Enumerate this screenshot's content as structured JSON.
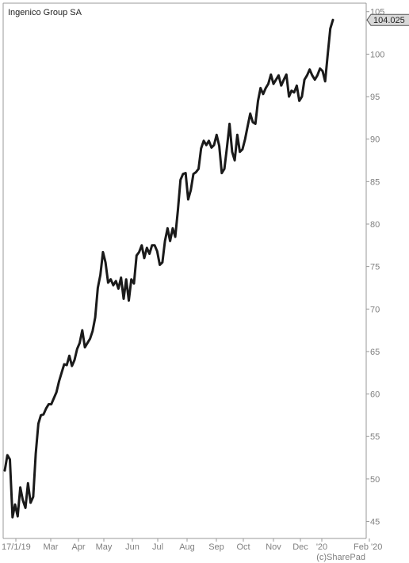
{
  "chart_data": {
    "type": "line",
    "title": "Ingenico Group SA",
    "credit": "(c)SharePad",
    "last_value_label": "104.025",
    "xlabel": "",
    "ylabel": "",
    "ylim": [
      43,
      106
    ],
    "grid": false,
    "x_tick_labels": [
      "17/1/19",
      "Mar",
      "Apr",
      "May",
      "Jun",
      "Jul",
      "Aug",
      "Sep",
      "Oct",
      "Nov",
      "Dec",
      "'20",
      "Feb '20"
    ],
    "y_tick_labels": [
      "45",
      "50",
      "55",
      "60",
      "65",
      "70",
      "75",
      "80",
      "85",
      "90",
      "95",
      "100",
      "105"
    ],
    "y_ticks": [
      45,
      50,
      55,
      60,
      65,
      70,
      75,
      80,
      85,
      90,
      95,
      100,
      105
    ],
    "colors": {
      "line": "#1a1a1a",
      "axis": "#999999",
      "text": "#7f7f7f",
      "last_label_bg": "#d9d9d9"
    },
    "series": [
      {
        "values": [
          51.0,
          52.8,
          52.3,
          45.5,
          47.0,
          45.6,
          49.0,
          47.5,
          46.6,
          49.5,
          47.2,
          47.9,
          53.0,
          56.5,
          57.5,
          57.6,
          58.3,
          58.8,
          58.8,
          59.5,
          60.2,
          61.5,
          62.5,
          63.5,
          63.4,
          64.5,
          63.3,
          64.0,
          65.3,
          66.0,
          67.5,
          65.5,
          66.0,
          66.5,
          67.4,
          69.0,
          72.5,
          74.0,
          76.7,
          75.5,
          73.1,
          73.5,
          72.8,
          73.3,
          72.4,
          73.7,
          71.2,
          73.5,
          71.0,
          73.5,
          73.0,
          76.3,
          76.7,
          77.5,
          76.0,
          77.2,
          76.5,
          77.5,
          77.5,
          76.8,
          75.2,
          75.5,
          78.0,
          79.5,
          78.0,
          79.5,
          78.5,
          81.6,
          85.2,
          85.9,
          86.0,
          82.9,
          84.0,
          85.9,
          86.1,
          86.5,
          88.9,
          89.8,
          89.3,
          89.8,
          89.0,
          89.3,
          90.5,
          89.2,
          86.0,
          86.5,
          89.0,
          91.8,
          88.5,
          87.5,
          90.5,
          88.5,
          88.8,
          90.0,
          91.5,
          93.0,
          92.0,
          91.8,
          94.5,
          96.0,
          95.3,
          96.0,
          96.5,
          97.6,
          96.5,
          97.0,
          97.5,
          96.3,
          97.0,
          97.6,
          95.0,
          95.7,
          95.5,
          96.3,
          94.5,
          95.0,
          97.0,
          97.5,
          98.2,
          97.5,
          97.0,
          97.5,
          98.3,
          98.0,
          96.8,
          100.0,
          103.0,
          104.025
        ]
      }
    ]
  }
}
